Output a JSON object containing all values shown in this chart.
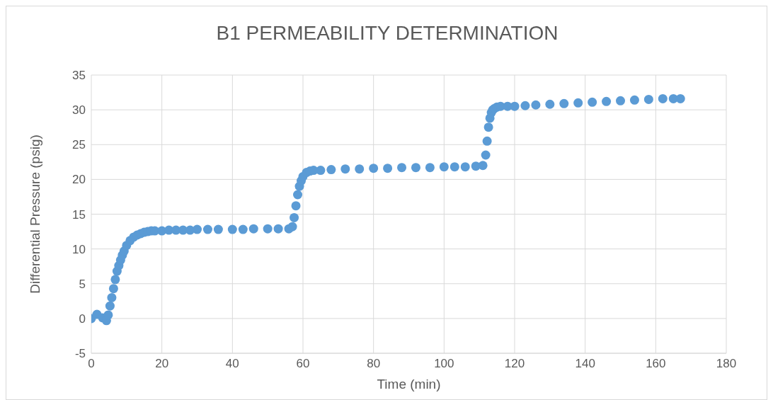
{
  "chart_data": {
    "type": "scatter",
    "title": "B1 PERMEABILITY DETERMINATION",
    "xlabel": "Time (min)",
    "ylabel": "Differential Pressure (psig)",
    "xlim": [
      0,
      180
    ],
    "xticks": [
      0,
      20,
      40,
      60,
      80,
      100,
      120,
      140,
      160,
      180
    ],
    "ylim": [
      -5,
      35
    ],
    "yticks": [
      -5,
      0,
      5,
      10,
      15,
      20,
      25,
      30,
      35
    ],
    "grid": true,
    "marker": "circle",
    "series": [
      {
        "color": "#5b9bd5",
        "x": [
          0,
          1.6,
          3.2,
          4.3,
          4.8,
          5.3,
          5.8,
          6.3,
          6.8,
          7.3,
          7.8,
          8.3,
          8.8,
          9.3,
          10,
          11,
          12,
          13,
          14,
          15,
          16,
          17,
          18,
          20,
          22,
          24,
          26,
          28,
          30,
          33,
          36,
          40,
          43,
          46,
          50,
          53,
          56,
          57,
          57.5,
          58,
          58.5,
          59,
          59.5,
          60,
          61,
          62,
          63,
          65,
          68,
          72,
          76,
          80,
          84,
          88,
          92,
          96,
          100,
          103,
          106,
          109,
          111,
          111.8,
          112.2,
          112.6,
          113,
          113.4,
          113.8,
          114.3,
          115,
          116,
          118,
          120,
          123,
          126,
          130,
          134,
          138,
          142,
          146,
          150,
          154,
          158,
          162,
          165,
          167
        ],
        "values": [
          0,
          0.6,
          0.1,
          -0.3,
          0.5,
          1.8,
          3,
          4.3,
          5.6,
          6.8,
          7.6,
          8.4,
          9.1,
          9.7,
          10.5,
          11.2,
          11.7,
          12,
          12.2,
          12.4,
          12.5,
          12.6,
          12.6,
          12.6,
          12.7,
          12.7,
          12.7,
          12.7,
          12.8,
          12.8,
          12.8,
          12.8,
          12.8,
          12.9,
          12.9,
          12.9,
          12.9,
          13.2,
          14.5,
          16.2,
          17.8,
          19,
          19.8,
          20.4,
          21,
          21.2,
          21.3,
          21.3,
          21.4,
          21.5,
          21.5,
          21.6,
          21.6,
          21.7,
          21.7,
          21.7,
          21.8,
          21.8,
          21.8,
          21.9,
          22,
          23.5,
          25.5,
          27.5,
          28.8,
          29.6,
          30,
          30.2,
          30.4,
          30.5,
          30.5,
          30.5,
          30.6,
          30.7,
          30.8,
          30.9,
          31,
          31.1,
          31.2,
          31.3,
          31.4,
          31.5,
          31.6,
          31.6,
          31.6
        ]
      }
    ]
  }
}
